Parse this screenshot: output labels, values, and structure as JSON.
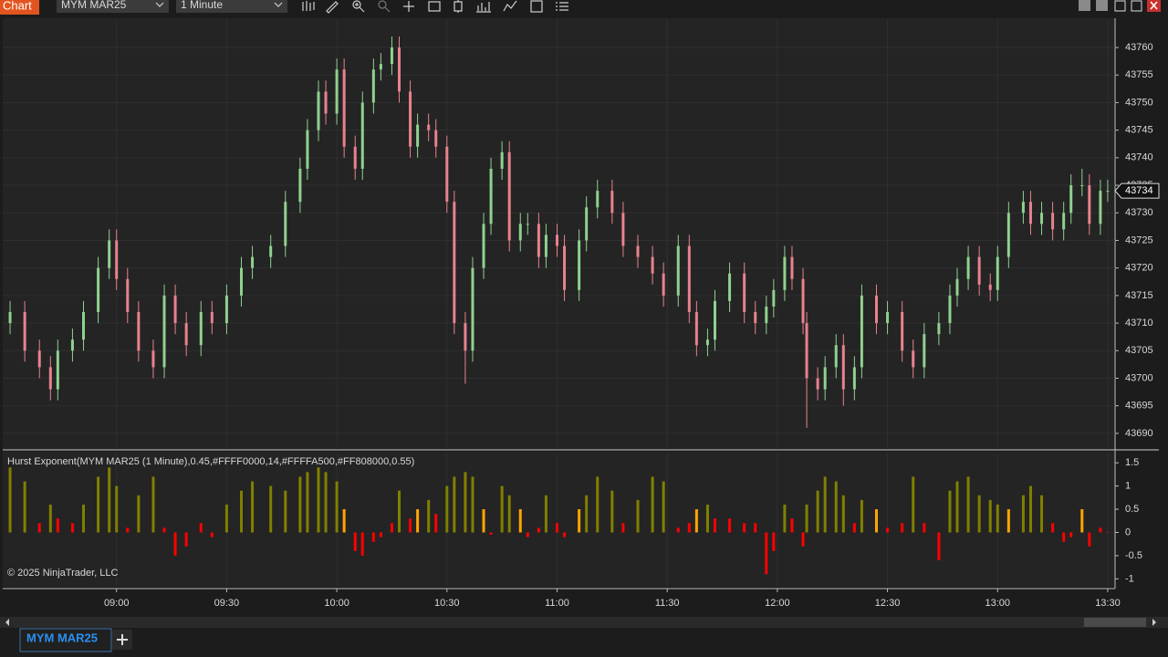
{
  "window": {
    "title": "Chart",
    "instrument": "MYM MAR25",
    "interval": "1 Minute"
  },
  "tabs": [
    "MYM MAR25"
  ],
  "chart_data": [
    {
      "type": "candlestick",
      "x": [
        511,
        515,
        519,
        522,
        524,
        528,
        531,
        535,
        538,
        540,
        543,
        546,
        550,
        553,
        556,
        559,
        563,
        566,
        570,
        574,
        577,
        582,
        586,
        590,
        592,
        595,
        597,
        600,
        602,
        605,
        607,
        610,
        612,
        615,
        617,
        620,
        622,
        625,
        627,
        630,
        632,
        635,
        637,
        640,
        642,
        645,
        647,
        650,
        652,
        655,
        657,
        660,
        662,
        666,
        668,
        671,
        675,
        678,
        682,
        686,
        689,
        693,
        696,
        698,
        701,
        703,
        707,
        711,
        714,
        717,
        719,
        722,
        724,
        727,
        728,
        731,
        733,
        736,
        738,
        741,
        743,
        747,
        750,
        754,
        757,
        760,
        764,
        767,
        769,
        772,
        775,
        778,
        780,
        783,
        787,
        789,
        792,
        795,
        798,
        800,
        803,
        805,
        808,
        810
      ],
      "open": [
        43710,
        43712,
        43705,
        43702,
        43698,
        43705,
        43707,
        43712,
        43720,
        43725,
        43718,
        43712,
        43705,
        43702,
        43715,
        43710,
        43706,
        43712,
        43710,
        43715,
        43720,
        43722,
        43724,
        43732,
        43738,
        43745,
        43752,
        43748,
        43756,
        43742,
        43738,
        43750,
        43756,
        43757,
        43760,
        43752,
        43742,
        43746,
        43745,
        43742,
        43732,
        43710,
        43705,
        43720,
        43728,
        43738,
        43741,
        43725,
        43728,
        43728,
        43722,
        43726,
        43724,
        43716,
        43725,
        43731,
        43734,
        43730,
        43724,
        43722,
        43719,
        43715,
        43724,
        43712,
        43706,
        43707,
        43714,
        43719,
        43712,
        43710,
        43713,
        43716,
        43722,
        43718,
        43710,
        43700,
        43698,
        43702,
        43706,
        43698,
        43702,
        43715,
        43710,
        43712,
        43705,
        43702,
        43708,
        43710,
        43715,
        43718,
        43722,
        43717,
        43716,
        43722,
        43730,
        43732,
        43728,
        43730,
        43727,
        43730,
        43735,
        43735,
        43728,
        43734
      ],
      "high": [
        43714,
        43714,
        43707,
        43704,
        43707,
        43709,
        43714,
        43722,
        43727,
        43727,
        43720,
        43714,
        43707,
        43717,
        43717,
        43712,
        43714,
        43714,
        43717,
        43722,
        43724,
        43726,
        43734,
        43740,
        43747,
        43754,
        43754,
        43758,
        43758,
        43744,
        43752,
        43758,
        43759,
        43762,
        43762,
        43754,
        43748,
        43748,
        43747,
        43744,
        43734,
        43712,
        43722,
        43730,
        43740,
        43743,
        43743,
        43730,
        43730,
        43730,
        43728,
        43728,
        43726,
        43727,
        43733,
        43736,
        43736,
        43732,
        43726,
        43724,
        43721,
        43726,
        43726,
        43714,
        43709,
        43716,
        43721,
        43721,
        43714,
        43715,
        43718,
        43724,
        43724,
        43720,
        43712,
        43702,
        43704,
        43708,
        43708,
        43704,
        43717,
        43717,
        43714,
        43714,
        43707,
        43710,
        43712,
        43717,
        43720,
        43724,
        43724,
        43719,
        43724,
        43732,
        43734,
        43734,
        43732,
        43732,
        43732,
        43737,
        43738,
        43737,
        43736,
        43736
      ],
      "low": [
        43708,
        43703,
        43700,
        43696,
        43696,
        43703,
        43705,
        43710,
        43718,
        43716,
        43710,
        43703,
        43700,
        43700,
        43708,
        43704,
        43704,
        43708,
        43708,
        43713,
        43718,
        43720,
        43722,
        43730,
        43736,
        43743,
        43746,
        43746,
        43740,
        43736,
        43736,
        43748,
        43754,
        43755,
        43750,
        43740,
        43740,
        43743,
        43740,
        43730,
        43708,
        43699,
        43703,
        43718,
        43726,
        43736,
        43723,
        43723,
        43726,
        43720,
        43720,
        43722,
        43714,
        43714,
        43723,
        43729,
        43728,
        43722,
        43720,
        43717,
        43713,
        43713,
        43710,
        43704,
        43704,
        43705,
        43712,
        43710,
        43708,
        43708,
        43711,
        43714,
        43716,
        43708,
        43691,
        43696,
        43696,
        43700,
        43695,
        43696,
        43700,
        43708,
        43708,
        43703,
        43700,
        43700,
        43706,
        43708,
        43713,
        43716,
        43715,
        43714,
        43714,
        43720,
        43728,
        43726,
        43726,
        43725,
        43725,
        43728,
        43733,
        43726,
        43726,
        43732
      ],
      "close": [
        43712,
        43705,
        43702,
        43698,
        43705,
        43707,
        43712,
        43720,
        43725,
        43718,
        43712,
        43705,
        43702,
        43715,
        43710,
        43706,
        43712,
        43710,
        43715,
        43720,
        43722,
        43724,
        43732,
        43738,
        43745,
        43752,
        43748,
        43756,
        43742,
        43738,
        43750,
        43756,
        43757,
        43760,
        43752,
        43742,
        43746,
        43745,
        43742,
        43732,
        43710,
        43705,
        43720,
        43728,
        43738,
        43741,
        43725,
        43728,
        43728,
        43722,
        43726,
        43724,
        43716,
        43725,
        43731,
        43734,
        43730,
        43724,
        43722,
        43719,
        43715,
        43724,
        43712,
        43706,
        43707,
        43714,
        43719,
        43712,
        43710,
        43713,
        43716,
        43722,
        43718,
        43710,
        43700,
        43698,
        43702,
        43706,
        43698,
        43702,
        43715,
        43710,
        43712,
        43705,
        43702,
        43708,
        43710,
        43715,
        43718,
        43722,
        43717,
        43716,
        43722,
        43730,
        43732,
        43728,
        43730,
        43727,
        43730,
        43735,
        43735,
        43728,
        43734,
        43734
      ],
      "last_price": 43734,
      "up_color": "#8fd18f",
      "down_color": "#e8828e",
      "xlim": [
        509,
        812
      ],
      "xticks": [
        {
          "value": 540,
          "label": "09:00"
        },
        {
          "value": 570,
          "label": "09:30"
        },
        {
          "value": 600,
          "label": "10:00"
        },
        {
          "value": 630,
          "label": "10:30"
        },
        {
          "value": 660,
          "label": "11:00"
        },
        {
          "value": 690,
          "label": "11:30"
        },
        {
          "value": 720,
          "label": "12:00"
        },
        {
          "value": 750,
          "label": "12:30"
        },
        {
          "value": 780,
          "label": "13:00"
        },
        {
          "value": 810,
          "label": "13:30"
        }
      ],
      "ylim": [
        43687.5,
        43765.3
      ],
      "yticks": [
        43690,
        43695,
        43700,
        43705,
        43710,
        43715,
        43720,
        43725,
        43730,
        43735,
        43740,
        43745,
        43750,
        43755,
        43760
      ],
      "grid": true
    },
    {
      "type": "bar",
      "title": "Hurst Exponent(MYM MAR25 (1 Minute),0.45,#FFFF0000,14,#FFFFA500,#FF808000,0.55)",
      "annotation": "© 2025 NinjaTrader, LLC",
      "values": [
        1.4,
        1.1,
        0.2,
        0.6,
        0.3,
        0.2,
        0.6,
        1.2,
        1.4,
        1.0,
        0.1,
        0.8,
        1.2,
        0.1,
        -0.5,
        -0.3,
        0.2,
        -0.1,
        0.6,
        0.9,
        1.1,
        1.0,
        0.9,
        1.2,
        1.3,
        1.4,
        1.3,
        1.1,
        0.5,
        -0.4,
        -0.5,
        -0.2,
        -0.1,
        0.2,
        0.9,
        0.3,
        0.5,
        0.7,
        0.4,
        1.0,
        1.2,
        1.3,
        1.2,
        0.5,
        -0.05,
        1.0,
        0.8,
        0.5,
        -0.1,
        0.1,
        0.8,
        0.2,
        -0.1,
        0.5,
        0.8,
        1.2,
        0.9,
        0.2,
        0.7,
        1.2,
        1.1,
        0.1,
        0.2,
        0.5,
        0.6,
        0.3,
        0.3,
        0.2,
        0.2,
        -0.9,
        -0.4,
        0.6,
        0.3,
        -0.3,
        0.6,
        0.9,
        1.2,
        1.1,
        0.8,
        0.2,
        0.7,
        0.5,
        0.1,
        0.2,
        1.2,
        0.2,
        -0.6,
        0.9,
        1.1,
        1.2,
        0.8,
        0.7,
        0.6,
        0.5,
        0.8,
        1.0,
        0.8,
        0.2,
        -0.2,
        -0.1,
        0.5,
        -0.3,
        0.1,
        0.0
      ],
      "thresholds": [
        0.45,
        0.55
      ],
      "colors": {
        "low": "#FF0000",
        "mid": "#FFA500",
        "high": "#808000"
      },
      "ylim": [
        -1.15,
        1.7
      ],
      "yticks": [
        1.5,
        1,
        0.5,
        0,
        -0.5,
        -1
      ]
    }
  ]
}
